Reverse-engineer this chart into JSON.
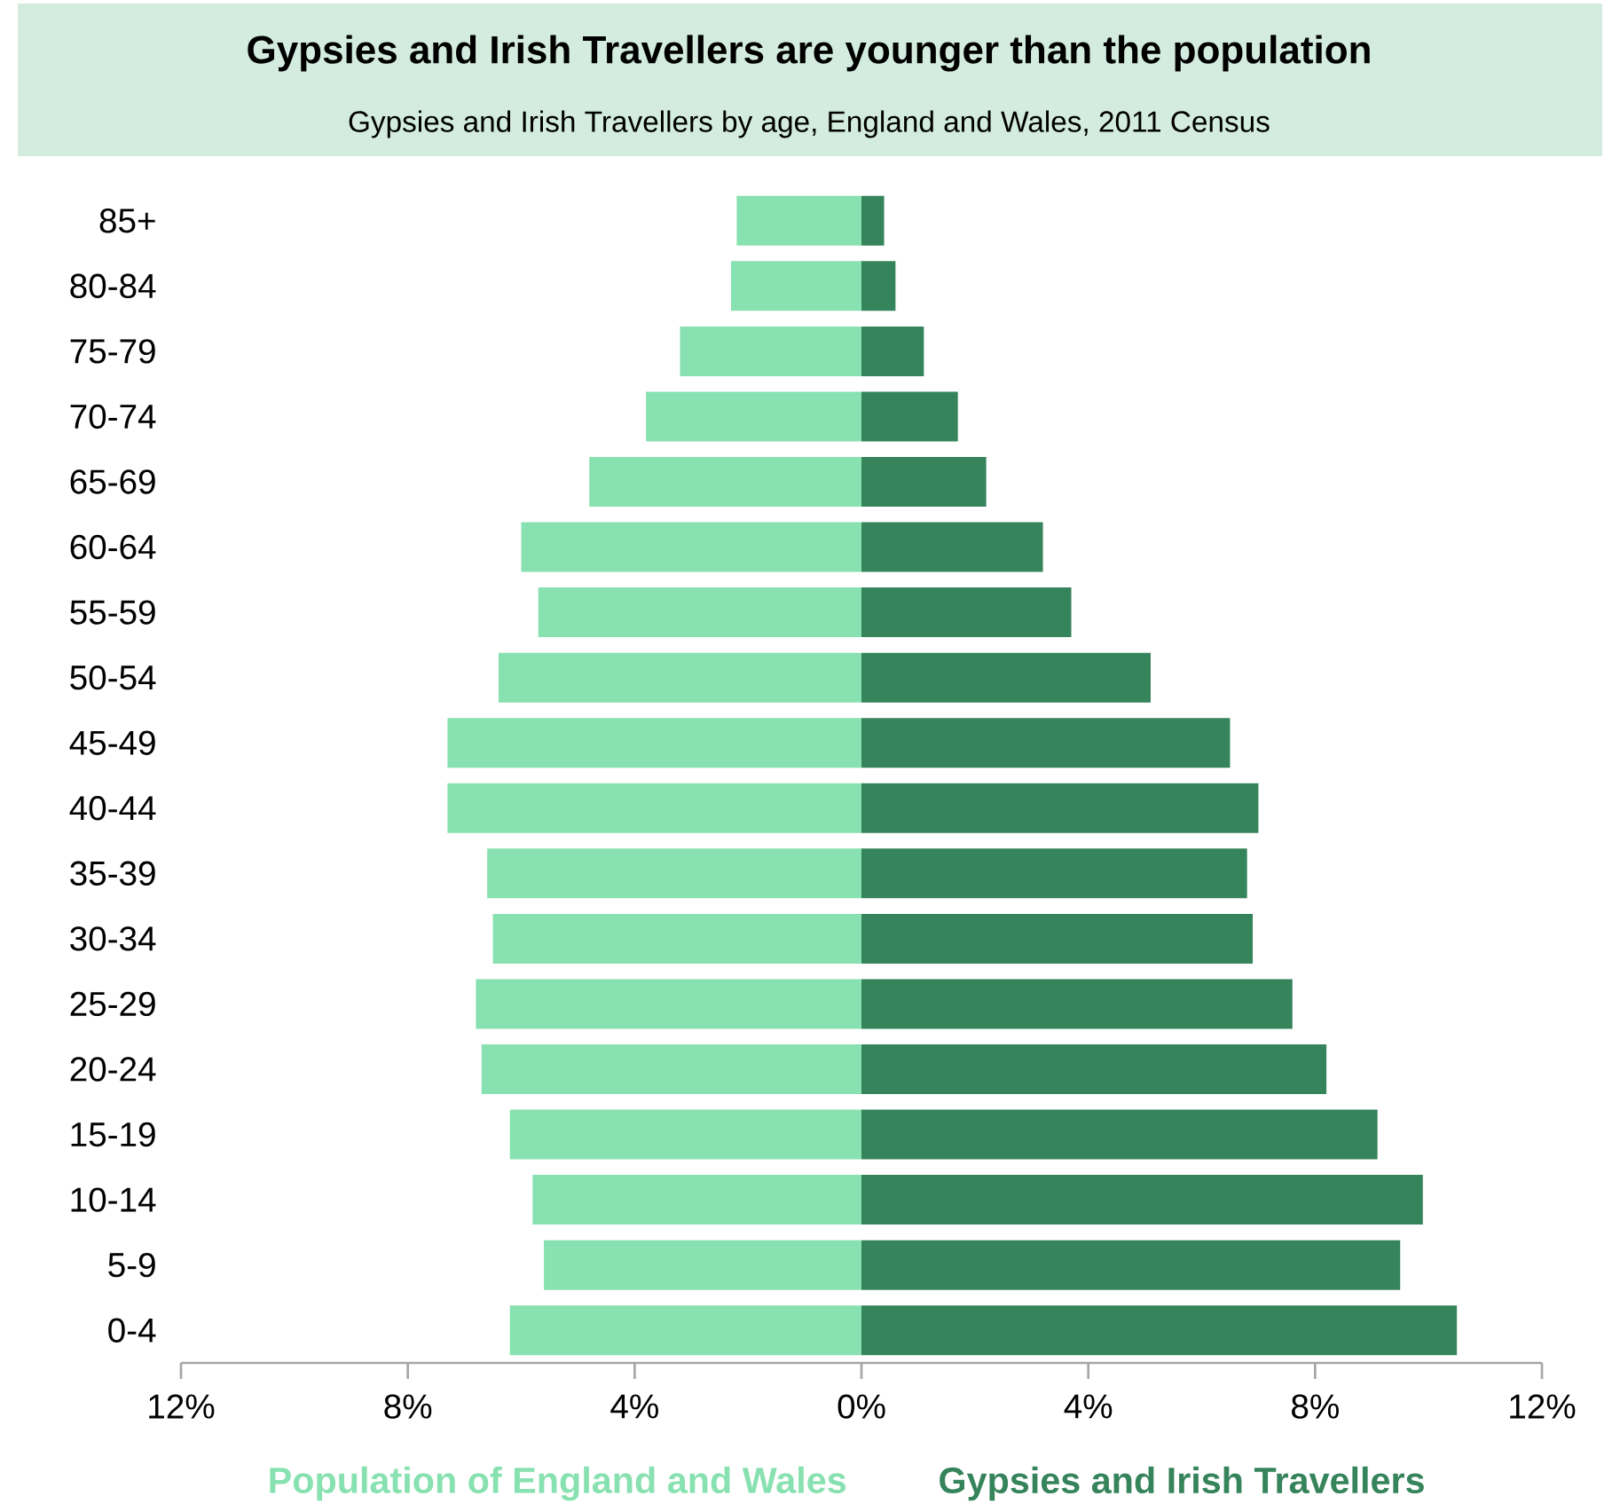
{
  "chart_data": {
    "type": "bar",
    "orientation": "horizontal",
    "title": "Gypsies and Irish Travellers are younger than the population",
    "subtitle": "Gypsies and Irish Travellers by age, England and Wales, 2011 Census",
    "categories": [
      "85+",
      "80-84",
      "75-79",
      "70-74",
      "65-69",
      "60-64",
      "55-59",
      "50-54",
      "45-49",
      "40-44",
      "35-39",
      "30-34",
      "25-29",
      "20-24",
      "15-19",
      "10-14",
      "5-9",
      "0-4"
    ],
    "series": [
      {
        "name": "Population of England and Wales",
        "color": "#88e1b0",
        "values": [
          -2.2,
          -2.3,
          -3.2,
          -3.8,
          -4.8,
          -6.0,
          -5.7,
          -6.4,
          -7.3,
          -7.3,
          -6.6,
          -6.5,
          -6.8,
          -6.7,
          -6.2,
          -5.8,
          -5.6,
          -6.2
        ]
      },
      {
        "name": "Gypsies and Irish Travellers",
        "color": "#36845b",
        "values": [
          0.4,
          0.6,
          1.1,
          1.7,
          2.2,
          3.2,
          3.7,
          5.1,
          6.5,
          7.0,
          6.8,
          6.9,
          7.6,
          8.2,
          9.1,
          9.9,
          9.5,
          10.5
        ]
      }
    ],
    "xlim": [
      -12,
      12
    ],
    "xticks": [
      {
        "value": -12,
        "label": "12%"
      },
      {
        "value": -8,
        "label": "8%"
      },
      {
        "value": -4,
        "label": "4%"
      },
      {
        "value": 0,
        "label": "0%"
      },
      {
        "value": 4,
        "label": "4%"
      },
      {
        "value": 8,
        "label": "8%"
      },
      {
        "value": 12,
        "label": "12%"
      }
    ],
    "stacked": true,
    "grid": false
  }
}
